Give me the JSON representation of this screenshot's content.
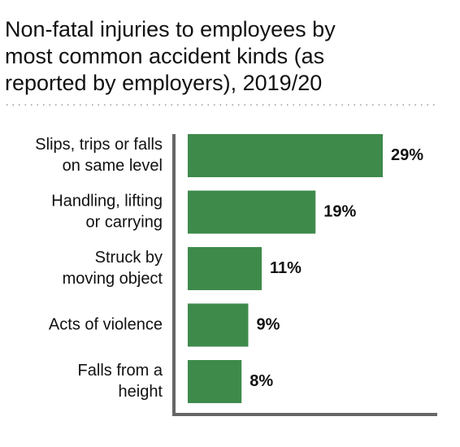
{
  "chart_data": {
    "type": "bar",
    "orientation": "horizontal",
    "title": [
      "Non-fatal injuries to employees by",
      "most common accident kinds (as",
      "reported by employers), 2019/20"
    ],
    "categories": [
      [
        "Slips, trips or falls",
        "on same level"
      ],
      [
        "Handling, lifting",
        "or carrying"
      ],
      [
        "Struck by",
        "moving object"
      ],
      [
        "Acts of violence"
      ],
      [
        "Falls from a",
        "height"
      ]
    ],
    "values": [
      29,
      19,
      11,
      9,
      8
    ],
    "value_labels": [
      "29%",
      "19%",
      "11%",
      "9%",
      "8%"
    ],
    "color": "#3e8a4b"
  }
}
